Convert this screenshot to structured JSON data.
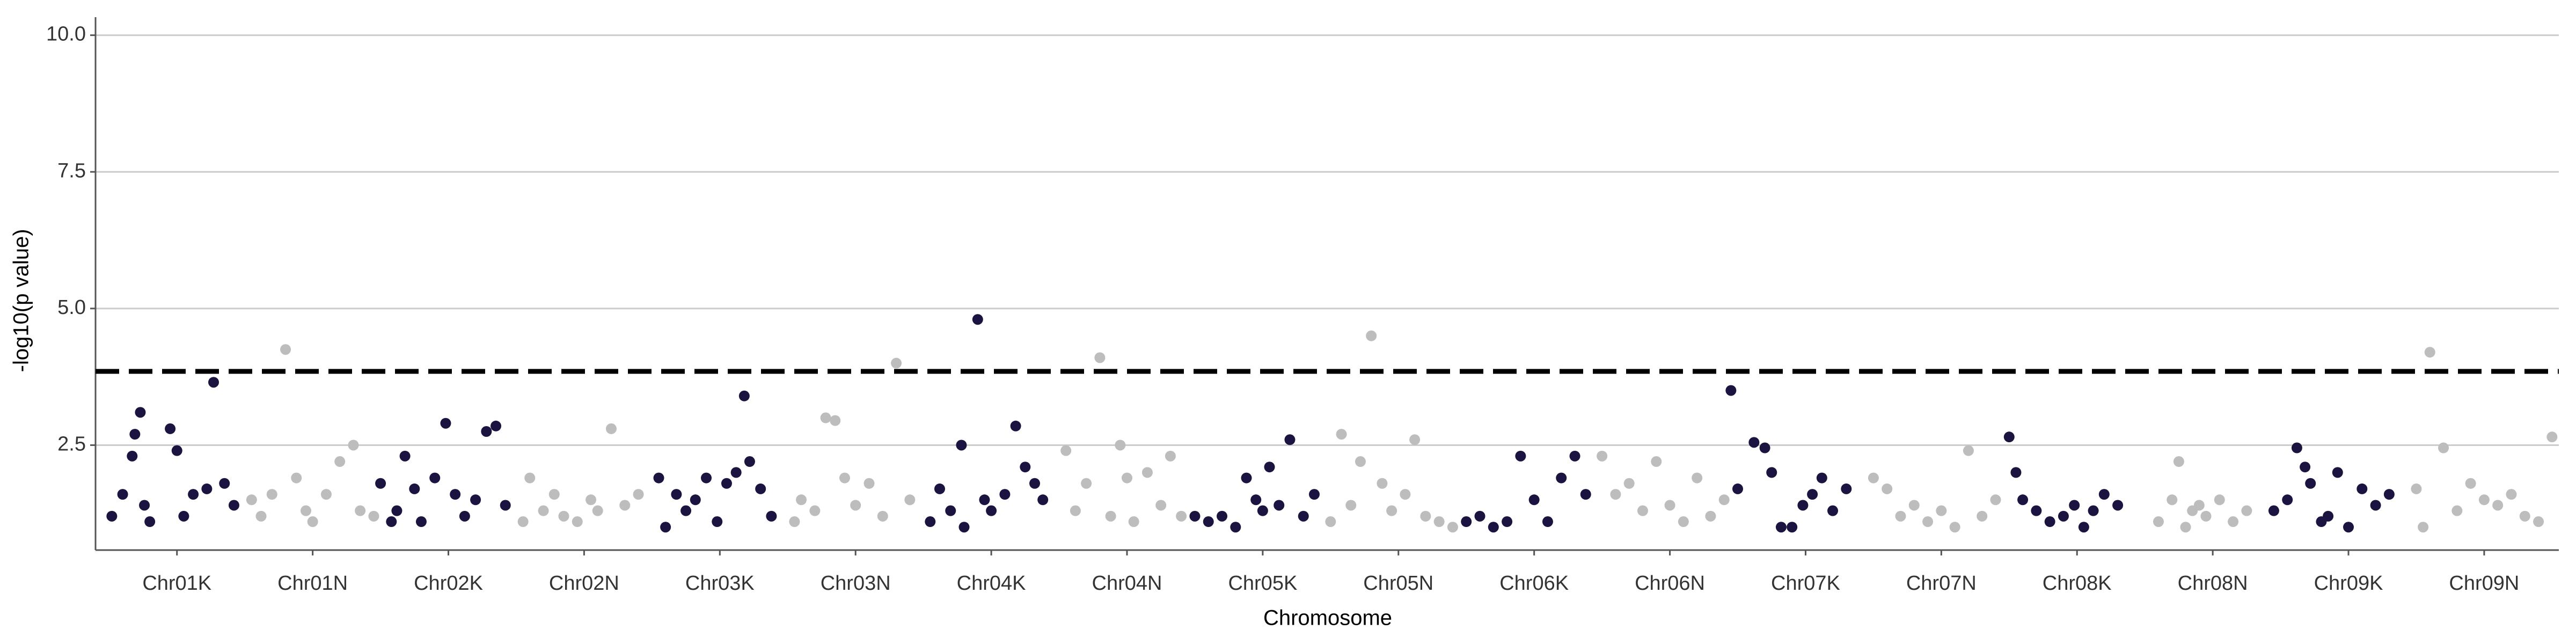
{
  "chart_data": {
    "type": "scatter",
    "x_label": "Chromosome",
    "y_label": "-log10(p value)",
    "xlim": [
      0.4,
      18.55
    ],
    "ylim": [
      0.58,
      10.33
    ],
    "xticks": [
      {
        "value": 1,
        "label": "Chr01K"
      },
      {
        "value": 2,
        "label": "Chr01N"
      },
      {
        "value": 3,
        "label": "Chr02K"
      },
      {
        "value": 4,
        "label": "Chr02N"
      },
      {
        "value": 5,
        "label": "Chr03K"
      },
      {
        "value": 6,
        "label": "Chr03N"
      },
      {
        "value": 7,
        "label": "Chr04K"
      },
      {
        "value": 8,
        "label": "Chr04N"
      },
      {
        "value": 9,
        "label": "Chr05K"
      },
      {
        "value": 10,
        "label": "Chr05N"
      },
      {
        "value": 11,
        "label": "Chr06K"
      },
      {
        "value": 12,
        "label": "Chr06N"
      },
      {
        "value": 13,
        "label": "Chr07K"
      },
      {
        "value": 14,
        "label": "Chr07N"
      },
      {
        "value": 15,
        "label": "Chr08K"
      },
      {
        "value": 16,
        "label": "Chr08N"
      },
      {
        "value": 17,
        "label": "Chr09K"
      },
      {
        "value": 18,
        "label": "Chr09N"
      }
    ],
    "yticks": [
      2.5,
      {
        "value": 5,
        "label": "5.0"
      },
      7.5,
      {
        "value": 10,
        "label": "10.0"
      }
    ],
    "grid": true,
    "threshold": 3.85,
    "threshold_color": "#000000",
    "series": [
      {
        "color": "#1b1340",
        "x": [
          0.52,
          0.6,
          0.67,
          0.69,
          0.73,
          0.76,
          0.8,
          0.95,
          1.0,
          1.05,
          1.12,
          1.22,
          1.27,
          1.35,
          1.42,
          2.5,
          2.58,
          2.62,
          2.68,
          2.75,
          2.8,
          2.9,
          2.98,
          3.05,
          3.12,
          3.2,
          3.28,
          3.35,
          3.42,
          4.55,
          4.6,
          4.68,
          4.75,
          4.82,
          4.9,
          4.98,
          5.05,
          5.12,
          5.18,
          5.22,
          5.3,
          5.38,
          6.55,
          6.62,
          6.7,
          6.78,
          6.8,
          6.9,
          6.95,
          7.0,
          7.1,
          7.18,
          7.25,
          7.32,
          7.38,
          8.5,
          8.6,
          8.7,
          8.8,
          8.88,
          8.95,
          9.0,
          9.05,
          9.12,
          9.2,
          9.3,
          9.38,
          10.5,
          10.6,
          10.7,
          10.8,
          10.9,
          11.0,
          11.1,
          11.2,
          11.3,
          11.38,
          12.45,
          12.5,
          12.62,
          12.7,
          12.75,
          12.82,
          12.9,
          12.98,
          13.05,
          13.12,
          13.2,
          13.3,
          14.5,
          14.55,
          14.6,
          14.7,
          14.8,
          14.9,
          14.98,
          15.05,
          15.12,
          15.2,
          15.3,
          16.45,
          16.55,
          16.62,
          16.68,
          16.72,
          16.8,
          16.85,
          16.92,
          17.0,
          17.1,
          17.2,
          17.3
        ],
        "values": [
          1.2,
          1.6,
          2.3,
          2.7,
          3.1,
          1.4,
          1.1,
          2.8,
          2.4,
          1.2,
          1.6,
          1.7,
          3.65,
          1.8,
          1.4,
          1.8,
          1.1,
          1.3,
          2.3,
          1.7,
          1.1,
          1.9,
          2.9,
          1.6,
          1.2,
          1.5,
          2.75,
          2.85,
          1.4,
          1.9,
          1.0,
          1.6,
          1.3,
          1.5,
          1.9,
          1.1,
          1.8,
          2.0,
          3.4,
          2.2,
          1.7,
          1.2,
          1.1,
          1.7,
          1.3,
          2.5,
          1.0,
          4.8,
          1.5,
          1.3,
          1.6,
          2.85,
          2.1,
          1.8,
          1.5,
          1.2,
          1.1,
          1.2,
          1.0,
          1.9,
          1.5,
          1.3,
          2.1,
          1.4,
          2.6,
          1.2,
          1.6,
          1.1,
          1.2,
          1.0,
          1.1,
          2.3,
          1.5,
          1.1,
          1.9,
          2.3,
          1.6,
          3.5,
          1.7,
          2.55,
          2.45,
          2.0,
          1.0,
          1.0,
          1.4,
          1.6,
          1.9,
          1.3,
          1.7,
          2.65,
          2.0,
          1.5,
          1.3,
          1.1,
          1.2,
          1.4,
          1.0,
          1.3,
          1.6,
          1.4,
          1.3,
          1.5,
          2.45,
          2.1,
          1.8,
          1.1,
          1.2,
          2.0,
          1.0,
          1.7,
          1.4,
          1.6
        ]
      },
      {
        "color": "#bdbdbd",
        "x": [
          1.55,
          1.62,
          1.7,
          1.8,
          1.88,
          1.95,
          2.0,
          2.1,
          2.2,
          2.3,
          2.35,
          2.45,
          3.55,
          3.6,
          3.7,
          3.78,
          3.85,
          3.95,
          4.05,
          4.1,
          4.2,
          4.3,
          4.4,
          5.55,
          5.6,
          5.7,
          5.78,
          5.85,
          5.92,
          6.0,
          6.1,
          6.2,
          6.3,
          6.4,
          7.55,
          7.62,
          7.7,
          7.8,
          7.88,
          7.95,
          8.0,
          8.05,
          8.15,
          8.25,
          8.32,
          8.4,
          9.5,
          9.58,
          9.65,
          9.72,
          9.8,
          9.88,
          9.95,
          10.05,
          10.12,
          10.2,
          10.3,
          10.4,
          11.5,
          11.6,
          11.7,
          11.8,
          11.9,
          12.0,
          12.1,
          12.2,
          12.3,
          12.4,
          13.5,
          13.6,
          13.7,
          13.8,
          13.9,
          14.0,
          14.1,
          14.2,
          14.3,
          14.4,
          15.6,
          15.7,
          15.75,
          15.8,
          15.85,
          15.9,
          15.95,
          16.05,
          16.15,
          16.25,
          17.5,
          17.55,
          17.6,
          17.7,
          17.8,
          17.9,
          18.0,
          18.1,
          18.2,
          18.3,
          18.4,
          18.5
        ],
        "values": [
          1.5,
          1.2,
          1.6,
          4.25,
          1.9,
          1.3,
          1.1,
          1.6,
          2.2,
          2.5,
          1.3,
          1.2,
          1.1,
          1.9,
          1.3,
          1.6,
          1.2,
          1.1,
          1.5,
          1.3,
          2.8,
          1.4,
          1.6,
          1.1,
          1.5,
          1.3,
          3.0,
          2.95,
          1.9,
          1.4,
          1.8,
          1.2,
          4.0,
          1.5,
          2.4,
          1.3,
          1.8,
          4.1,
          1.2,
          2.5,
          1.9,
          1.1,
          2.0,
          1.4,
          2.3,
          1.2,
          1.1,
          2.7,
          1.4,
          2.2,
          4.5,
          1.8,
          1.3,
          1.6,
          2.6,
          1.2,
          1.1,
          1.0,
          2.3,
          1.6,
          1.8,
          1.3,
          2.2,
          1.4,
          1.1,
          1.9,
          1.2,
          1.5,
          1.9,
          1.7,
          1.2,
          1.4,
          1.1,
          1.3,
          1.0,
          2.4,
          1.2,
          1.5,
          1.1,
          1.5,
          2.2,
          1.0,
          1.3,
          1.4,
          1.2,
          1.5,
          1.1,
          1.3,
          1.7,
          1.0,
          4.2,
          2.45,
          1.3,
          1.8,
          1.5,
          1.4,
          1.6,
          1.2,
          1.1,
          2.65
        ]
      }
    ]
  }
}
